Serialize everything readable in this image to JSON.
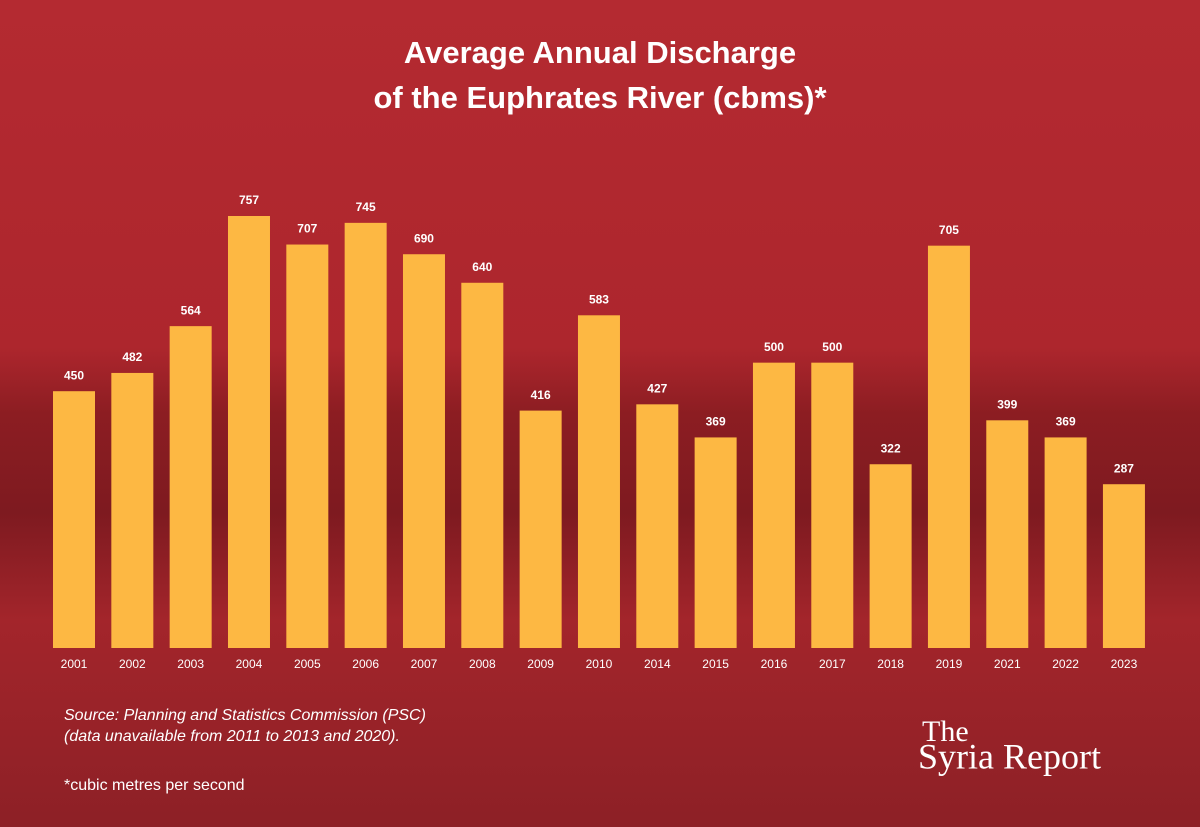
{
  "chart_data": {
    "type": "bar",
    "title": [
      "Average Annual Discharge",
      "of the Euphrates River (cbms)*"
    ],
    "categories": [
      "2001",
      "2002",
      "2003",
      "2004",
      "2005",
      "2006",
      "2007",
      "2008",
      "2009",
      "2010",
      "2014",
      "2015",
      "2016",
      "2017",
      "2018",
      "2019",
      "2021",
      "2022",
      "2023"
    ],
    "values": [
      450,
      482,
      564,
      757,
      707,
      745,
      690,
      640,
      416,
      583,
      427,
      369,
      500,
      500,
      322,
      705,
      399,
      369,
      287
    ],
    "color": "#fdb843",
    "source": [
      "Source: Planning and Statistics Commission (PSC)",
      "(data unavailable from 2011 to 2013 and 2020)."
    ],
    "footnote": "*cubic metres per second",
    "logo": [
      "The",
      "Syria Report"
    ]
  }
}
